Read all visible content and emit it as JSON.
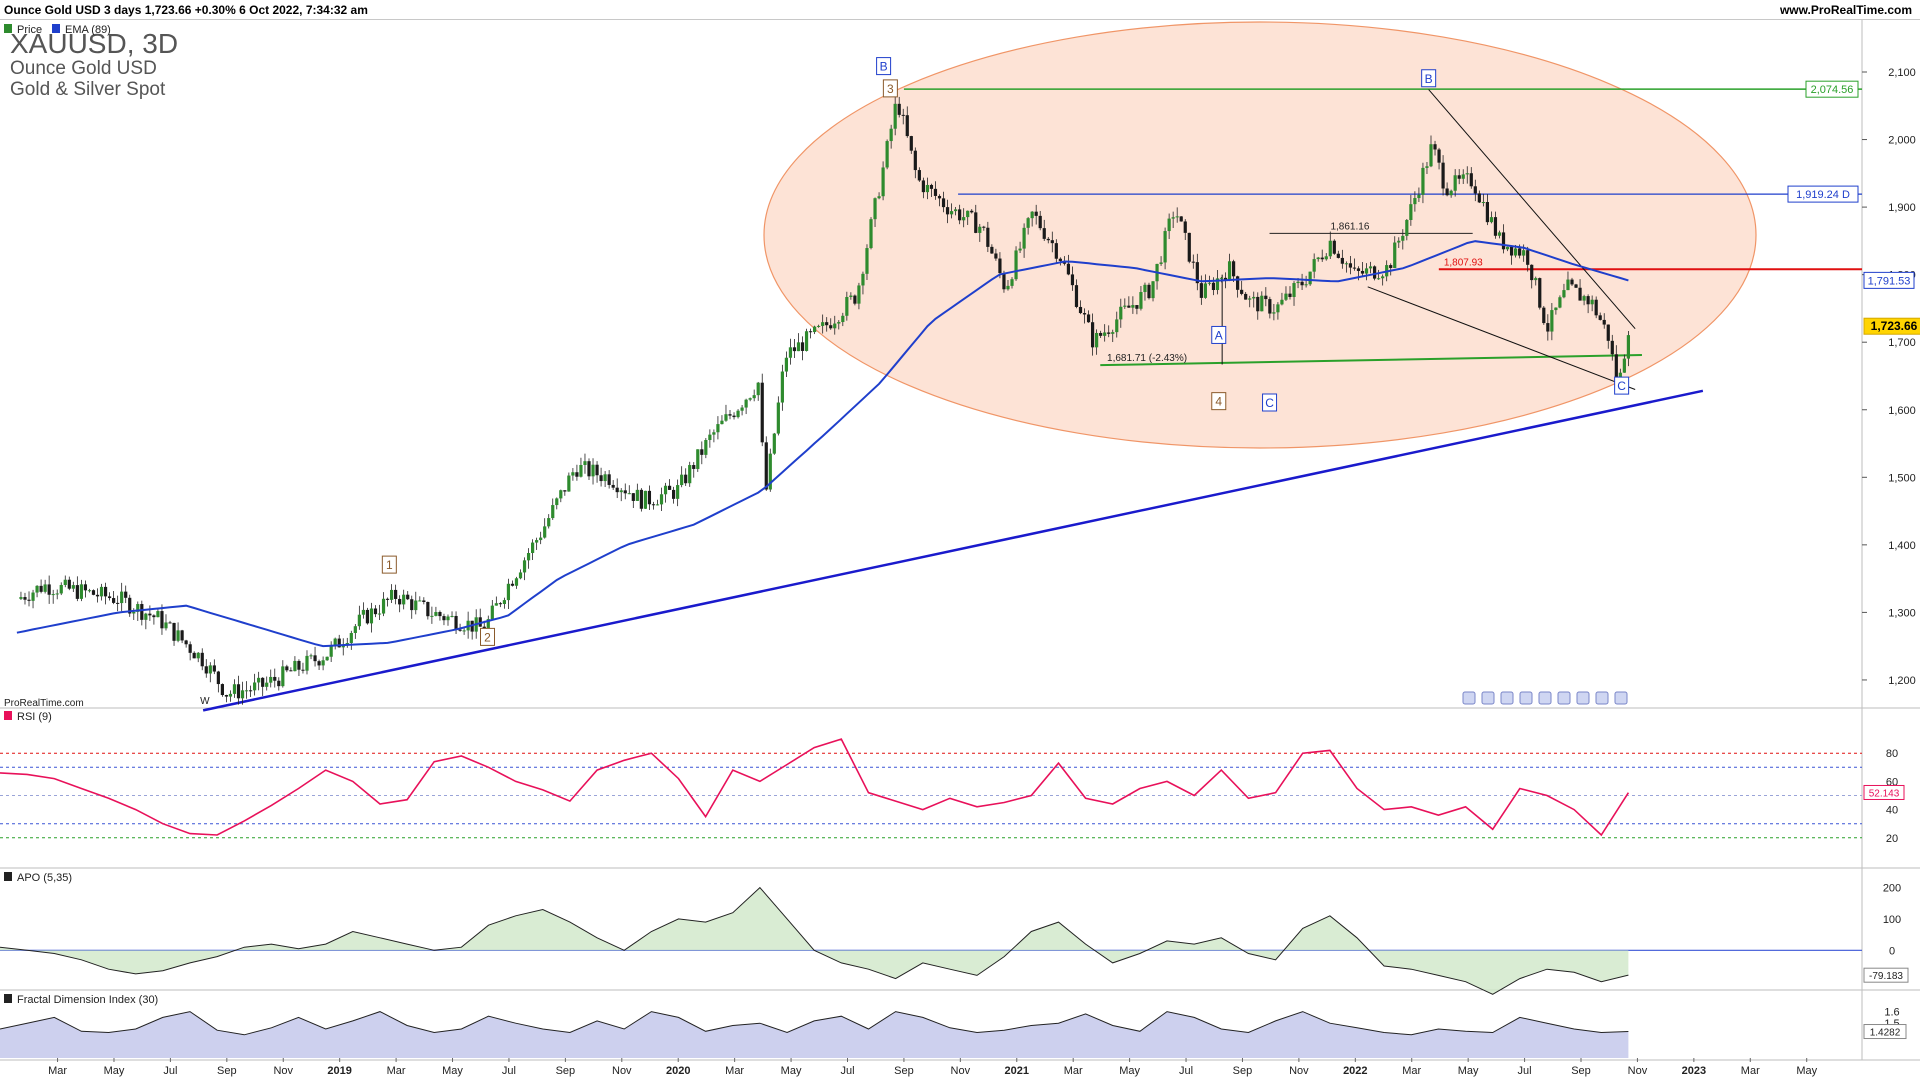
{
  "header": {
    "title": "Ounce Gold USD 3 days 1,723.66 +0.30% 6 Oct 2022, 7:34:32 am",
    "site": "www.ProRealTime.com"
  },
  "colors": {
    "up_candle": "#2e8b2e",
    "down_candle": "#1a1a1a",
    "ema": "#1f3fcc",
    "ellipse_fill": "#fde1d2",
    "ellipse_stroke": "#ef8a57",
    "trendline": "#1a1acc",
    "rsi_line": "#e8115a",
    "apo_pos": "#cfe7c8",
    "apo_neg": "#e9cfc9",
    "fdi_fill": "#c8cbec"
  },
  "chart_data": [
    {
      "type": "candlestick",
      "symbol_label": "XAUUSD, 3D",
      "instrument_name": "Ounce Gold USD",
      "instrument_group": "Gold & Silver Spot",
      "legend": [
        "Price",
        "EMA (89)"
      ],
      "ylim": [
        1150,
        2150
      ],
      "y_ticks": [
        "1,200",
        "1,300",
        "1,400",
        "1,500",
        "1,600",
        "1,700",
        "1,800",
        "1,900",
        "2,000",
        "2,100"
      ],
      "x_ticks": [
        "Mar",
        "May",
        "Jul",
        "Sep",
        "Nov",
        "2019",
        "Mar",
        "May",
        "Jul",
        "Sep",
        "Nov",
        "2020",
        "Mar",
        "May",
        "Jul",
        "Sep",
        "Nov",
        "2021",
        "Mar",
        "May",
        "Jul",
        "Sep",
        "Nov",
        "2022",
        "Mar",
        "May",
        "Jul",
        "Sep",
        "Nov",
        "2023",
        "Mar",
        "May"
      ],
      "price_path": [
        {
          "t": 2018.0,
          "v": 1320
        },
        {
          "t": 2018.08,
          "v": 1340
        },
        {
          "t": 2018.2,
          "v": 1330
        },
        {
          "t": 2018.3,
          "v": 1320
        },
        {
          "t": 2018.42,
          "v": 1290
        },
        {
          "t": 2018.55,
          "v": 1230
        },
        {
          "t": 2018.62,
          "v": 1180
        },
        {
          "t": 2018.72,
          "v": 1190
        },
        {
          "t": 2018.82,
          "v": 1215
        },
        {
          "t": 2018.92,
          "v": 1240
        },
        {
          "t": 2019.02,
          "v": 1290
        },
        {
          "t": 2019.12,
          "v": 1325
        },
        {
          "t": 2019.22,
          "v": 1300
        },
        {
          "t": 2019.32,
          "v": 1285
        },
        {
          "t": 2019.38,
          "v": 1275
        },
        {
          "t": 2019.45,
          "v": 1340
        },
        {
          "t": 2019.55,
          "v": 1420
        },
        {
          "t": 2019.65,
          "v": 1515
        },
        {
          "t": 2019.75,
          "v": 1500
        },
        {
          "t": 2019.85,
          "v": 1465
        },
        {
          "t": 2019.95,
          "v": 1480
        },
        {
          "t": 2020.05,
          "v": 1560
        },
        {
          "t": 2020.12,
          "v": 1600
        },
        {
          "t": 2020.19,
          "v": 1640
        },
        {
          "t": 2020.21,
          "v": 1470
        },
        {
          "t": 2020.27,
          "v": 1680
        },
        {
          "t": 2020.38,
          "v": 1720
        },
        {
          "t": 2020.48,
          "v": 1770
        },
        {
          "t": 2020.56,
          "v": 1960
        },
        {
          "t": 2020.6,
          "v": 2060
        },
        {
          "t": 2020.66,
          "v": 1940
        },
        {
          "t": 2020.75,
          "v": 1900
        },
        {
          "t": 2020.85,
          "v": 1870
        },
        {
          "t": 2020.92,
          "v": 1780
        },
        {
          "t": 2021.0,
          "v": 1890
        },
        {
          "t": 2021.08,
          "v": 1830
        },
        {
          "t": 2021.18,
          "v": 1700
        },
        {
          "t": 2021.26,
          "v": 1740
        },
        {
          "t": 2021.35,
          "v": 1780
        },
        {
          "t": 2021.42,
          "v": 1900
        },
        {
          "t": 2021.5,
          "v": 1770
        },
        {
          "t": 2021.58,
          "v": 1810
        },
        {
          "t": 2021.64,
          "v": 1760
        },
        {
          "t": 2021.72,
          "v": 1750
        },
        {
          "t": 2021.8,
          "v": 1790
        },
        {
          "t": 2021.88,
          "v": 1850
        },
        {
          "t": 2021.95,
          "v": 1800
        },
        {
          "t": 2022.05,
          "v": 1810
        },
        {
          "t": 2022.12,
          "v": 1900
        },
        {
          "t": 2022.18,
          "v": 1990
        },
        {
          "t": 2022.22,
          "v": 1930
        },
        {
          "t": 2022.3,
          "v": 1940
        },
        {
          "t": 2022.38,
          "v": 1850
        },
        {
          "t": 2022.46,
          "v": 1830
        },
        {
          "t": 2022.52,
          "v": 1720
        },
        {
          "t": 2022.58,
          "v": 1780
        },
        {
          "t": 2022.65,
          "v": 1760
        },
        {
          "t": 2022.7,
          "v": 1710
        },
        {
          "t": 2022.73,
          "v": 1630
        },
        {
          "t": 2022.76,
          "v": 1723.66
        }
      ],
      "ema_path": [
        {
          "t": 2018.0,
          "v": 1270
        },
        {
          "t": 2018.3,
          "v": 1300
        },
        {
          "t": 2018.5,
          "v": 1310
        },
        {
          "t": 2018.7,
          "v": 1280
        },
        {
          "t": 2018.9,
          "v": 1250
        },
        {
          "t": 2019.1,
          "v": 1255
        },
        {
          "t": 2019.3,
          "v": 1275
        },
        {
          "t": 2019.45,
          "v": 1295
        },
        {
          "t": 2019.6,
          "v": 1350
        },
        {
          "t": 2019.8,
          "v": 1400
        },
        {
          "t": 2020.0,
          "v": 1430
        },
        {
          "t": 2020.2,
          "v": 1480
        },
        {
          "t": 2020.4,
          "v": 1570
        },
        {
          "t": 2020.55,
          "v": 1640
        },
        {
          "t": 2020.7,
          "v": 1730
        },
        {
          "t": 2020.9,
          "v": 1800
        },
        {
          "t": 2021.1,
          "v": 1820
        },
        {
          "t": 2021.3,
          "v": 1810
        },
        {
          "t": 2021.5,
          "v": 1790
        },
        {
          "t": 2021.7,
          "v": 1795
        },
        {
          "t": 2021.9,
          "v": 1790
        },
        {
          "t": 2022.1,
          "v": 1810
        },
        {
          "t": 2022.3,
          "v": 1850
        },
        {
          "t": 2022.45,
          "v": 1840
        },
        {
          "t": 2022.6,
          "v": 1815
        },
        {
          "t": 2022.76,
          "v": 1791.53
        }
      ],
      "levels": [
        {
          "label": "2,074.56",
          "value": 2074.56,
          "color": "#2aa02a"
        },
        {
          "label": "1,919.24 D",
          "value": 1919.24,
          "color": "#1f3fcc"
        },
        {
          "label": "1,807.93",
          "value": 1807.93,
          "color": "#e01010"
        },
        {
          "label": "1,861.16",
          "value": 1861.16,
          "color": "#222222"
        },
        {
          "label": "1,681.71 (-2.43%)",
          "value": 1681.71,
          "color": "#2aa02a"
        }
      ],
      "axis_badges": [
        {
          "label": "2,074.56",
          "value": 2074.56,
          "kind": "green"
        },
        {
          "label": "1,919.24 D",
          "value": 1919.24,
          "kind": "blue"
        },
        {
          "label": "1,791.53",
          "value": 1791.53,
          "kind": "ema"
        },
        {
          "label": "1,723.66",
          "value": 1723.66,
          "kind": "last"
        }
      ],
      "waves": [
        {
          "label": "B",
          "t": 2020.56,
          "v": 2108,
          "style": "blue"
        },
        {
          "label": "3",
          "t": 2020.58,
          "v": 2075,
          "style": "brown"
        },
        {
          "label": "B",
          "t": 2022.17,
          "v": 2090,
          "style": "blue"
        },
        {
          "label": "A",
          "t": 2021.55,
          "v": 1710,
          "style": "blue"
        },
        {
          "label": "4",
          "t": 2021.55,
          "v": 1612,
          "style": "brown"
        },
        {
          "label": "C",
          "t": 2021.7,
          "v": 1610,
          "style": "blue"
        },
        {
          "label": "C",
          "t": 2022.74,
          "v": 1635,
          "style": "blue"
        },
        {
          "label": "1",
          "t": 2019.1,
          "v": 1370,
          "style": "brown"
        },
        {
          "label": "2",
          "t": 2019.39,
          "v": 1263,
          "style": "brown"
        },
        {
          "label": "W",
          "t": 2018.55,
          "v": 1170,
          "style": "plain"
        }
      ]
    },
    {
      "type": "line",
      "name": "RSI (9)",
      "ylim": [
        0,
        100
      ],
      "y_ticks": [
        "20",
        "40",
        "60",
        "80"
      ],
      "last_value": "52.143",
      "values": [
        66,
        65,
        62,
        55,
        48,
        40,
        30,
        23,
        22,
        32,
        43,
        55,
        68,
        60,
        44,
        47,
        74,
        78,
        70,
        60,
        54,
        46,
        68,
        75,
        80,
        62,
        35,
        68,
        60,
        72,
        84,
        90,
        52,
        46,
        40,
        48,
        42,
        45,
        50,
        73,
        48,
        44,
        55,
        60,
        50,
        68,
        48,
        52,
        80,
        82,
        55,
        40,
        42,
        36,
        42,
        26,
        55,
        50,
        40,
        22,
        52
      ]
    },
    {
      "type": "area",
      "name": "APO (5,35)",
      "ylim": [
        -120,
        240
      ],
      "y_ticks": [
        "0",
        "100",
        "200"
      ],
      "last_value": "-79.183",
      "values": [
        10,
        0,
        -10,
        -30,
        -60,
        -75,
        -65,
        -40,
        -20,
        10,
        20,
        5,
        20,
        60,
        40,
        20,
        0,
        10,
        80,
        110,
        130,
        90,
        40,
        0,
        60,
        100,
        90,
        120,
        200,
        100,
        0,
        -40,
        -60,
        -90,
        -40,
        -60,
        -80,
        -20,
        60,
        90,
        20,
        -40,
        -10,
        30,
        20,
        40,
        -10,
        -30,
        70,
        110,
        40,
        -50,
        -60,
        -80,
        -100,
        -140,
        -90,
        -60,
        -70,
        -100,
        -79
      ]
    },
    {
      "type": "area",
      "name": "Fractal Dimension Index (30)",
      "ylim": [
        1.2,
        1.7
      ],
      "y_ticks": [
        "1.5",
        "1.6"
      ],
      "last_value": "1.4282",
      "values": [
        1.45,
        1.5,
        1.55,
        1.43,
        1.42,
        1.45,
        1.55,
        1.6,
        1.44,
        1.4,
        1.46,
        1.55,
        1.45,
        1.52,
        1.6,
        1.48,
        1.42,
        1.45,
        1.56,
        1.5,
        1.45,
        1.42,
        1.52,
        1.45,
        1.6,
        1.55,
        1.43,
        1.48,
        1.5,
        1.42,
        1.52,
        1.56,
        1.45,
        1.6,
        1.55,
        1.46,
        1.42,
        1.44,
        1.48,
        1.5,
        1.58,
        1.48,
        1.43,
        1.6,
        1.55,
        1.45,
        1.42,
        1.52,
        1.6,
        1.5,
        1.46,
        1.42,
        1.4,
        1.45,
        1.43,
        1.42,
        1.55,
        1.5,
        1.45,
        1.42,
        1.4282
      ]
    }
  ],
  "panel_labels": {
    "watermark": "ProRealTime.com"
  }
}
